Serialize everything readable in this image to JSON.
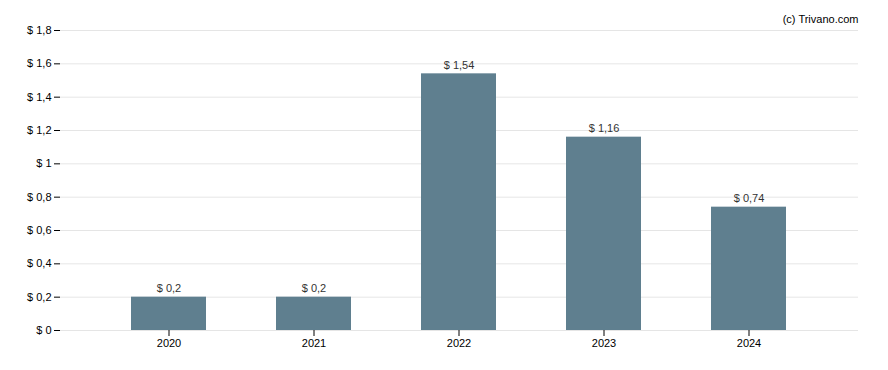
{
  "chart_data": {
    "type": "bar",
    "categories": [
      "2020",
      "2021",
      "2022",
      "2023",
      "2024"
    ],
    "values": [
      0.2,
      0.2,
      1.54,
      1.16,
      0.74
    ],
    "value_labels": [
      "$ 0,2",
      "$ 0,2",
      "$ 1,54",
      "$ 1,16",
      "$ 0,74"
    ],
    "color": "#5f7f8f",
    "ylim": [
      0,
      1.8
    ],
    "yticks": [
      {
        "value": 0,
        "label": "$ 0"
      },
      {
        "value": 0.2,
        "label": "$ 0,2"
      },
      {
        "value": 0.4,
        "label": "$ 0,4"
      },
      {
        "value": 0.6,
        "label": "$ 0,6"
      },
      {
        "value": 0.8,
        "label": "$ 0,8"
      },
      {
        "value": 1.0,
        "label": "$ 1"
      },
      {
        "value": 1.2,
        "label": "$ 1,2"
      },
      {
        "value": 1.4,
        "label": "$ 1,4"
      },
      {
        "value": 1.6,
        "label": "$ 1,6"
      },
      {
        "value": 1.8,
        "label": "$ 1,8"
      }
    ],
    "grid": true,
    "data_labels": true,
    "annotations": [
      "(c) Trivano.com"
    ]
  }
}
